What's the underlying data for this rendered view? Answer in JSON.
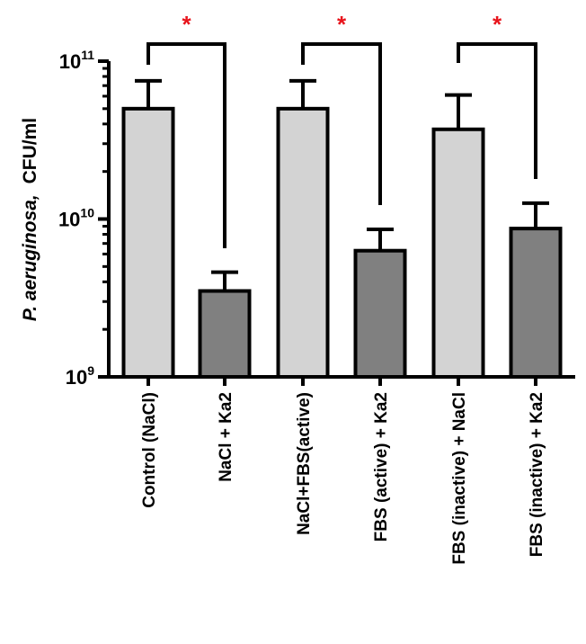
{
  "chart_data": {
    "type": "bar",
    "title": "",
    "xlabel": "",
    "ylabel": "P. aeruginosa, CFU/ml",
    "ylabel_italic_part": "P. aeruginosa,",
    "ylabel_units": "CFU/ml",
    "yscale": "log",
    "ylim": [
      1000000000.0,
      100000000000.0
    ],
    "yticks": [
      {
        "value": 1000000000.0,
        "base": "10",
        "exp": "9"
      },
      {
        "value": 10000000000.0,
        "base": "10",
        "exp": "10"
      },
      {
        "value": 100000000000.0,
        "base": "10",
        "exp": "11"
      }
    ],
    "categories": [
      "Control (NaCl)",
      "NaCl + Ka2",
      "NaCl+FBS(active)",
      "FBS (active) + Ka2",
      "FBS (inactive) + NaCl",
      "FBS (inactive) + Ka2"
    ],
    "values": [
      50000000000.0,
      3500000000.0,
      50000000000.0,
      6300000000.0,
      37000000000.0,
      8700000000.0
    ],
    "error_upper": [
      75000000000.0,
      4600000000.0,
      75000000000.0,
      8600000000.0,
      61000000000.0,
      12600000000.0
    ],
    "bar_colors": [
      "#d3d3d3",
      "#808080",
      "#d3d3d3",
      "#808080",
      "#d3d3d3",
      "#808080"
    ],
    "grid": false,
    "legend": null,
    "significance": [
      {
        "pair": [
          0,
          1
        ],
        "label": "*"
      },
      {
        "pair": [
          2,
          3
        ],
        "label": "*"
      },
      {
        "pair": [
          4,
          5
        ],
        "label": "*"
      }
    ],
    "significance_color": "#e8141c"
  }
}
